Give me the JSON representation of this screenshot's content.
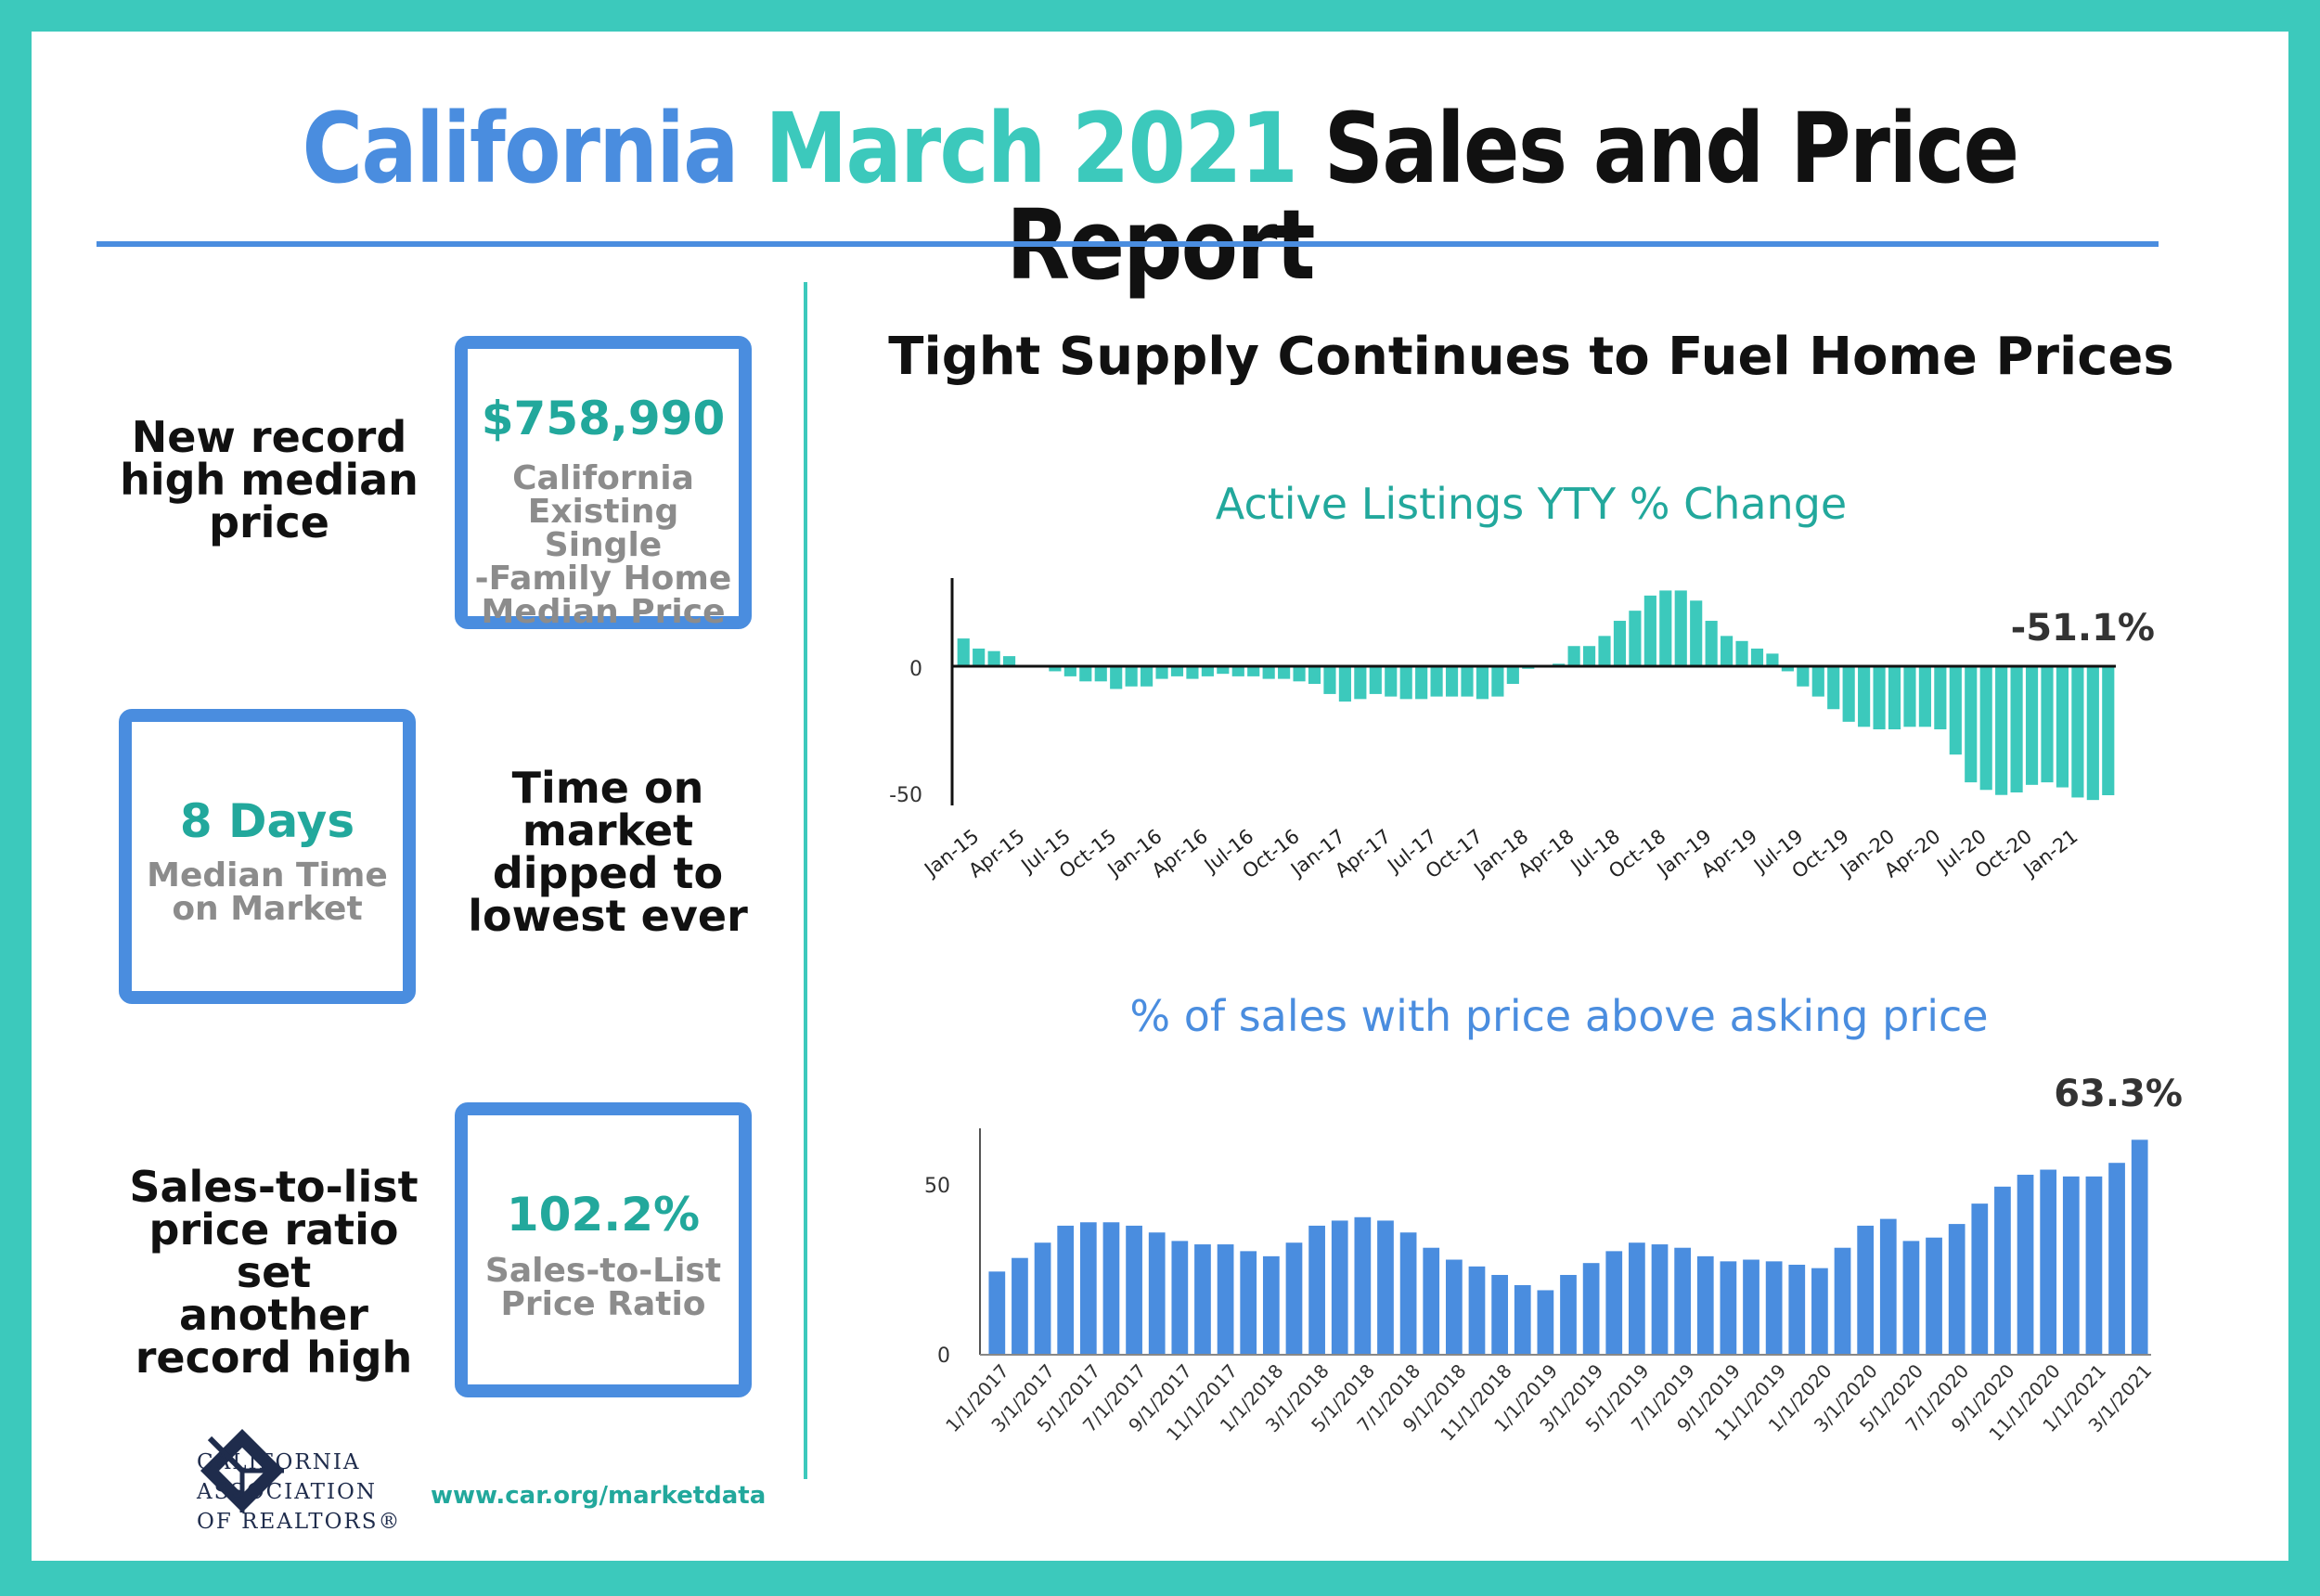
{
  "title": {
    "part1": "California",
    "part2": "March 2021",
    "part3": "Sales and Price Report"
  },
  "left": {
    "stat1": {
      "label_lines": [
        "New record",
        "high median",
        "price"
      ],
      "value": "$758,990",
      "desc_lines": [
        "California",
        "Existing Single",
        "-Family Home",
        "Median Price"
      ]
    },
    "stat2": {
      "label_lines": [
        "Time on",
        "market",
        "dipped to",
        "lowest ever"
      ],
      "value": "8 Days",
      "desc_lines": [
        "Median Time",
        "on Market"
      ]
    },
    "stat3": {
      "label_lines": [
        "Sales-to-list",
        "price ratio set",
        "another",
        "record high"
      ],
      "value": "102.2%",
      "desc_lines": [
        "Sales-to-List",
        "Price Ratio"
      ]
    },
    "logo_lines": [
      "CALIFORNIA",
      "ASSOCIATION",
      "OF REALTORS®"
    ],
    "url": "www.car.org/marketdata"
  },
  "right": {
    "heading": "Tight Supply Continues to Fuel Home Prices"
  },
  "colors": {
    "blue": "#4a8ddf",
    "teal": "#3cc9bc",
    "teal_dark": "#22a89c"
  },
  "chart_data": [
    {
      "type": "bar",
      "title": "Active Listings YTY % Change",
      "y_ticks": [
        0,
        -50
      ],
      "annotation": "-51.1%",
      "x_tick_labels": [
        "Jan-15",
        "Apr-15",
        "Jul-15",
        "Oct-15",
        "Jan-16",
        "Apr-16",
        "Jul-16",
        "Oct-16",
        "Jan-17",
        "Apr-17",
        "Jul-17",
        "Oct-17",
        "Jan-18",
        "Apr-18",
        "Jul-18",
        "Oct-18",
        "Jan-19",
        "Apr-19",
        "Jul-19",
        "Oct-19",
        "Jan-20",
        "Apr-20",
        "Jul-20",
        "Oct-20",
        "Jan-21"
      ],
      "values": [
        11,
        7,
        6,
        4,
        0,
        0,
        -2,
        -4,
        -6,
        -6,
        -9,
        -8,
        -8,
        -5,
        -4,
        -5,
        -4,
        -3,
        -4,
        -4,
        -5,
        -5,
        -6,
        -7,
        -11,
        -14,
        -13,
        -11,
        -12,
        -13,
        -13,
        -12,
        -12,
        -12,
        -13,
        -12,
        -7,
        -1,
        0,
        1,
        8,
        8,
        12,
        18,
        22,
        28,
        30,
        30,
        26,
        18,
        12,
        10,
        7,
        5,
        -2,
        -8,
        -12,
        -17,
        -22,
        -24,
        -25,
        -25,
        -24,
        -24,
        -25,
        -35,
        -46,
        -49,
        -51,
        -50,
        -47,
        -46,
        -48,
        -52,
        -53,
        -51.1
      ]
    },
    {
      "type": "bar",
      "title": "% of sales with price above asking price",
      "y_ticks": [
        50,
        0
      ],
      "annotation": "63.3%",
      "x_tick_labels": [
        "1/1/2017",
        "3/1/2017",
        "5/1/2017",
        "7/1/2017",
        "9/1/2017",
        "11/1/2017",
        "1/1/2018",
        "3/1/2018",
        "5/1/2018",
        "7/1/2018",
        "9/1/2018",
        "11/1/2018",
        "1/1/2019",
        "3/1/2019",
        "5/1/2019",
        "7/1/2019",
        "9/1/2019",
        "11/1/2019",
        "1/1/2020",
        "3/1/2020",
        "5/1/2020",
        "7/1/2020",
        "9/1/2020",
        "11/1/2020",
        "1/1/2021",
        "3/1/2021"
      ],
      "values": [
        24.5,
        28.5,
        33,
        38,
        39,
        39,
        38,
        36,
        33.5,
        32.5,
        32.5,
        30.5,
        29,
        33,
        38,
        39.5,
        40.5,
        39.5,
        36,
        31.5,
        28,
        26,
        23.5,
        20.5,
        19,
        23.5,
        27,
        30.5,
        33,
        32.5,
        31.5,
        29,
        27.5,
        28,
        27.5,
        26.5,
        25.5,
        31.5,
        38,
        40,
        33.5,
        34.5,
        38.5,
        44.5,
        49.5,
        53,
        54.5,
        52.5,
        52.5,
        56.5,
        63.3
      ]
    }
  ]
}
